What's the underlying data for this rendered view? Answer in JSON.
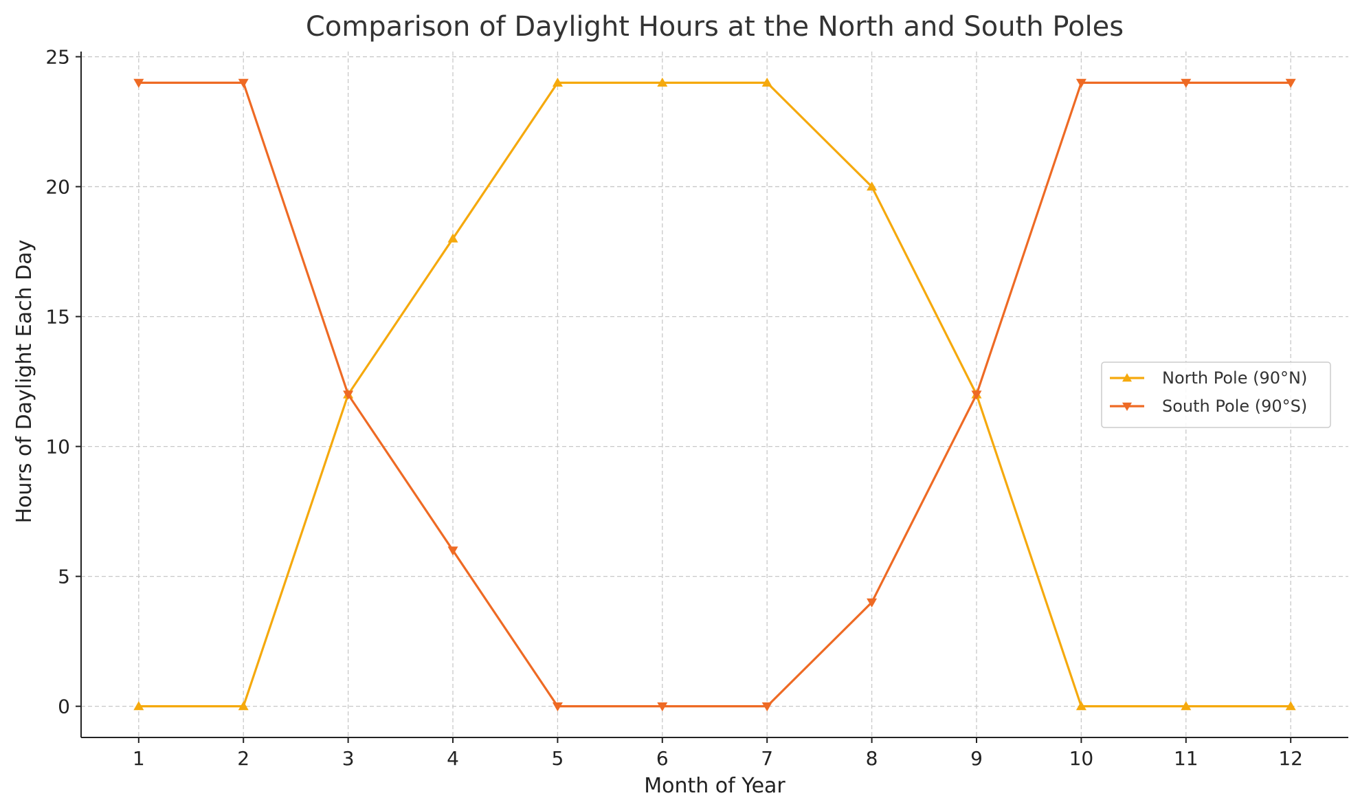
{
  "chart_data": {
    "type": "line",
    "title": "Comparison of Daylight Hours at the North and South Poles",
    "xlabel": "Month of Year",
    "ylabel": "Hours of Daylight Each Day",
    "x": [
      1,
      2,
      3,
      4,
      5,
      6,
      7,
      8,
      9,
      10,
      11,
      12
    ],
    "xlim": [
      0.45,
      12.55
    ],
    "ylim": [
      -1.2,
      25.2
    ],
    "yticks": [
      0,
      5,
      10,
      15,
      20,
      25
    ],
    "grid": true,
    "legend_position": "center-right",
    "series": [
      {
        "name": "North Pole (90°N)",
        "color": "#f5a90d",
        "marker": "triangle-up",
        "values": [
          0,
          0,
          12,
          18,
          24,
          24,
          24,
          20,
          12,
          0,
          0,
          0
        ]
      },
      {
        "name": "South Pole (90°S)",
        "color": "#ee6a24",
        "marker": "triangle-down",
        "values": [
          24,
          24,
          12,
          6,
          0,
          0,
          0,
          4,
          12,
          24,
          24,
          24
        ]
      }
    ]
  }
}
